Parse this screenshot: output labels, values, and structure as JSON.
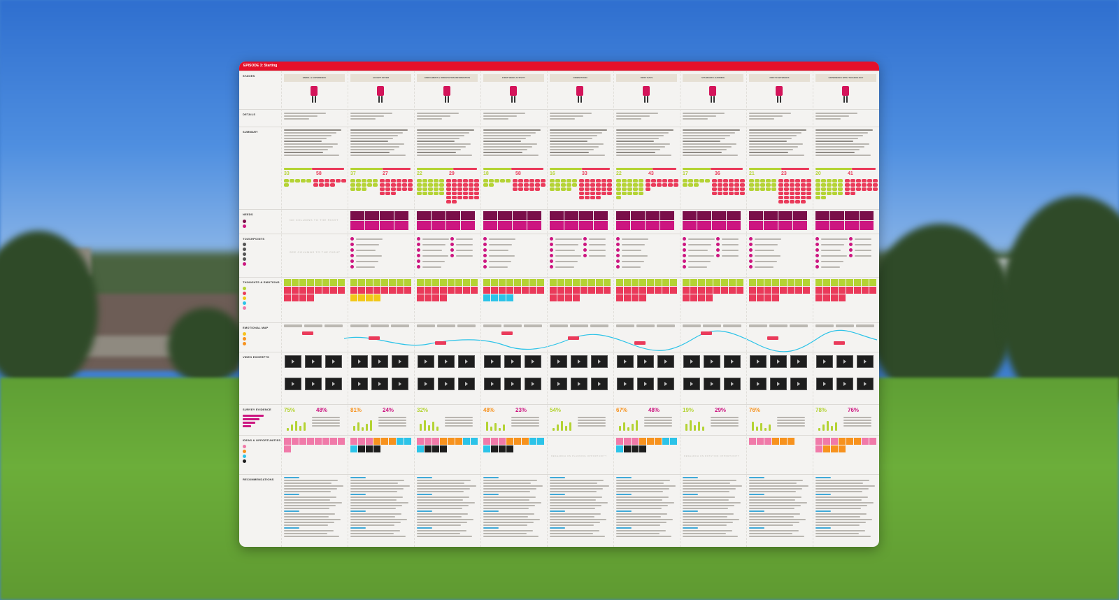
{
  "board": {
    "title": "EPISODE 3: Starting",
    "accent": "#e4102a",
    "rows": {
      "stages": "STAGES",
      "details": "DETAILS",
      "summary": "SUMMARY",
      "needs": "NEEDS",
      "touchpoints": "TOUCHPOINTS",
      "thoughts": "THOUGHTS & EMOTIONS",
      "emotional_map": "EMOTIONAL MAP",
      "video_excerpts": "VIDEO EXCERPTS",
      "survey_evidence": "SURVEY EVIDENCE",
      "ideas": "IDEAS & OPPORTUNITIES",
      "recommendations": "RECOMMENDATIONS"
    },
    "stages": [
      {
        "label": "ENROL & EXPERIENCE",
        "positive": "33",
        "negative": "58"
      },
      {
        "label": "ACCEPT OFFER",
        "positive": "37",
        "negative": "27"
      },
      {
        "label": "ENROLMENT & ORIENTATION INFORMATION",
        "positive": "22",
        "negative": "29"
      },
      {
        "label": "FIRST WEEK ACTIVITY",
        "positive": "18",
        "negative": "58"
      },
      {
        "label": "ORIENTATION",
        "positive": "16",
        "negative": "33"
      },
      {
        "label": "FIRST DAYS",
        "positive": "22",
        "negative": "43"
      },
      {
        "label": "STANDARD LEARNING",
        "positive": "17",
        "negative": "36"
      },
      {
        "label": "FIRST FEW WEEKS",
        "positive": "21",
        "negative": "23"
      },
      {
        "label": "EXPERIENCE WITH TECHNOLOGY",
        "positive": "20",
        "negative": "41"
      }
    ],
    "placeholders": {
      "needs": "NO COLUMNS TO THE RIGHT",
      "touch": "SEE COLUMNS TO THE RIGHT",
      "ideas_a": "RESEARCH ON PLANNING OPPORTUNITY",
      "ideas_b": "RESEARCH ON ROTATION OPPORTUNITY"
    },
    "survey": [
      "75%",
      "48%",
      "81%",
      "24%",
      "32%",
      "48%",
      "23%",
      "54%",
      "67%",
      "48%",
      "19%",
      "29%",
      "76%",
      "78%",
      "76%"
    ],
    "colors": {
      "positive": "#b4d334",
      "negative": "#ea3a5a",
      "magenta": "#cc1680",
      "purple": "#7a0f4a",
      "pink": "#f07aa9",
      "orange": "#f7921e",
      "cyan": "#2cc3e8",
      "yellow": "#f2c819",
      "black": "#1d1d1d"
    }
  }
}
